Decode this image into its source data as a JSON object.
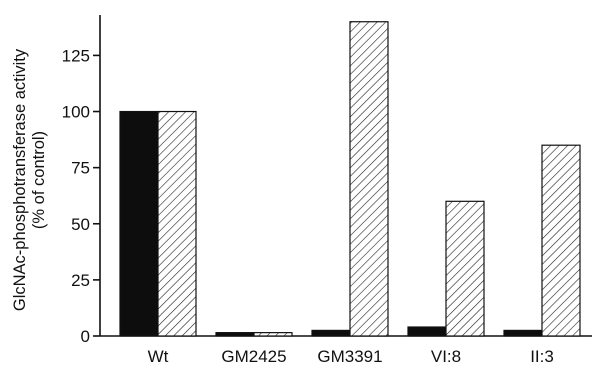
{
  "chart_data": {
    "type": "bar",
    "title": "",
    "xlabel": "",
    "ylabel": "GlcNAc-phosphotransferase activity",
    "ylabel_line2": "(% of control)",
    "categories": [
      "Wt",
      "GM2425",
      "GM3391",
      "VI:8",
      "II:3"
    ],
    "series": [
      {
        "values": [
          100,
          1.5,
          2.5,
          4,
          2.5
        ],
        "fill": "#0d0d0d",
        "pattern": "solid"
      },
      {
        "values": [
          100,
          1.5,
          140,
          60,
          85
        ],
        "fill": "#ffffff",
        "pattern": "diagonal-hatch"
      }
    ],
    "yticks": [
      0,
      25,
      50,
      75,
      100,
      125
    ],
    "ylim": [
      0,
      143
    ],
    "grid": false,
    "legend": "none"
  }
}
